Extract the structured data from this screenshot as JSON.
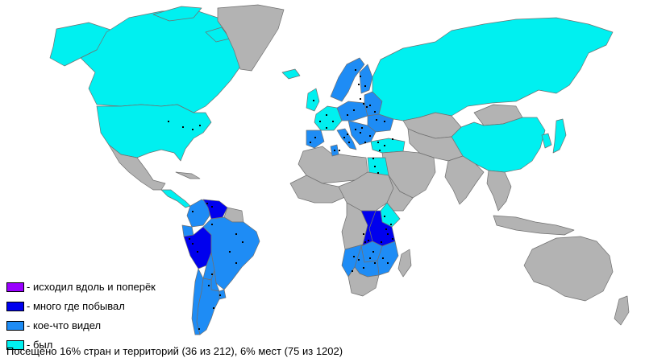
{
  "colors": {
    "ocean": "#ffffff",
    "not_visited": "#b3b3b3",
    "crossed_everywhere": "#9900ff",
    "visited_many_places": "#0000ee",
    "saw_something": "#1e8cf5",
    "was_there": "#00f0f0",
    "city_dot": "#000000"
  },
  "legend": [
    {
      "key": "crossed_everywhere",
      "color": "#9900ff",
      "label": "- исходил вдоль и поперёк"
    },
    {
      "key": "visited_many_places",
      "color": "#0000ee",
      "label": "- много где побывал"
    },
    {
      "key": "saw_something",
      "color": "#1e8cf5",
      "label": "- кое-что видел"
    },
    {
      "key": "was_there",
      "color": "#00f0f0",
      "label": "- был"
    }
  ],
  "summary": "Посещено 16% стран и территорий (36 из 212), 6% мест (75 из 1202)",
  "stats": {
    "countries_percent": 16,
    "countries_visited": 36,
    "countries_total": 212,
    "places_percent": 6,
    "places_visited": 75,
    "places_total": 1202
  },
  "regions": {
    "canada": "was_there",
    "usa": "was_there",
    "alaska": "was_there",
    "greenland": "not_visited",
    "mexico": "not_visited",
    "central_america": "was_there",
    "cuba": "not_visited",
    "venezuela": "visited_many_places",
    "colombia": "saw_something",
    "peru": "visited_many_places",
    "ecuador": "saw_something",
    "brazil": "saw_something",
    "bolivia": "saw_something",
    "paraguay": "saw_something",
    "argentina": "saw_something",
    "chile": "saw_something",
    "guianas": "not_visited",
    "uruguay": "saw_something",
    "iceland": "was_there",
    "uk": "was_there",
    "western_europe": "was_there",
    "spain": "saw_something",
    "italy": "saw_something",
    "germany_poland": "saw_something",
    "scandinavia": "saw_something",
    "finland": "saw_something",
    "baltics_belarus": "saw_something",
    "ukraine": "saw_something",
    "balkans": "saw_something",
    "turkey": "was_there",
    "russia": "was_there",
    "china": "was_there",
    "kazakhstan": "not_visited",
    "central_asia": "not_visited",
    "middle_east": "not_visited",
    "india": "not_visited",
    "southeast_asia": "not_visited",
    "mongolia": "not_visited",
    "japan": "was_there",
    "korea": "was_there",
    "indonesia": "not_visited",
    "australia": "not_visited",
    "new_zealand": "not_visited",
    "north_africa": "not_visited",
    "tunisia": "saw_something",
    "egypt": "was_there",
    "west_africa": "not_visited",
    "central_africa": "not_visited",
    "horn_of_africa": "not_visited",
    "kenya": "was_there",
    "tanzania": "visited_many_places",
    "zambia": "visited_many_places",
    "malawi_mozambique": "saw_something",
    "zimbabwe": "saw_something",
    "namibia": "saw_something",
    "botswana": "saw_something",
    "south_africa": "not_visited",
    "angola_congo": "not_visited",
    "madagascar": "not_visited"
  },
  "city_markers": 75
}
